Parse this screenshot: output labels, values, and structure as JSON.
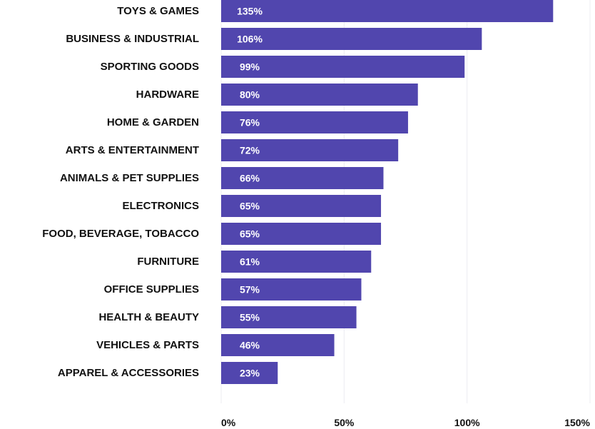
{
  "chart_data": {
    "type": "bar",
    "orientation": "horizontal",
    "categories": [
      "TOYS & GAMES",
      "BUSINESS & INDUSTRIAL",
      "SPORTING GOODS",
      "HARDWARE",
      "HOME & GARDEN",
      "ARTS & ENTERTAINMENT",
      "ANIMALS & PET SUPPLIES",
      "ELECTRONICS",
      "FOOD, BEVERAGE, TOBACCO",
      "FURNITURE",
      "OFFICE SUPPLIES",
      "HEALTH & BEAUTY",
      "VEHICLES & PARTS",
      "APPAREL & ACCESSORIES"
    ],
    "values": [
      135,
      106,
      99,
      80,
      76,
      72,
      66,
      65,
      65,
      61,
      57,
      55,
      46,
      23
    ],
    "value_labels": [
      "135%",
      "106%",
      "99%",
      "80%",
      "76%",
      "72%",
      "66%",
      "65%",
      "65%",
      "61%",
      "57%",
      "55%",
      "46%",
      "23%"
    ],
    "title": "",
    "xlabel": "",
    "ylabel": "",
    "xlim": [
      0,
      150
    ],
    "xticks": [
      0,
      50,
      100,
      150
    ],
    "xtick_labels": [
      "0%",
      "50%",
      "100%",
      "150%"
    ],
    "grid": "vertical",
    "legend": "none",
    "colors": {
      "bar": "#5146AE",
      "bar_label": "#FFFFFF",
      "grid": "#ECECF2",
      "text": "#111111"
    }
  }
}
